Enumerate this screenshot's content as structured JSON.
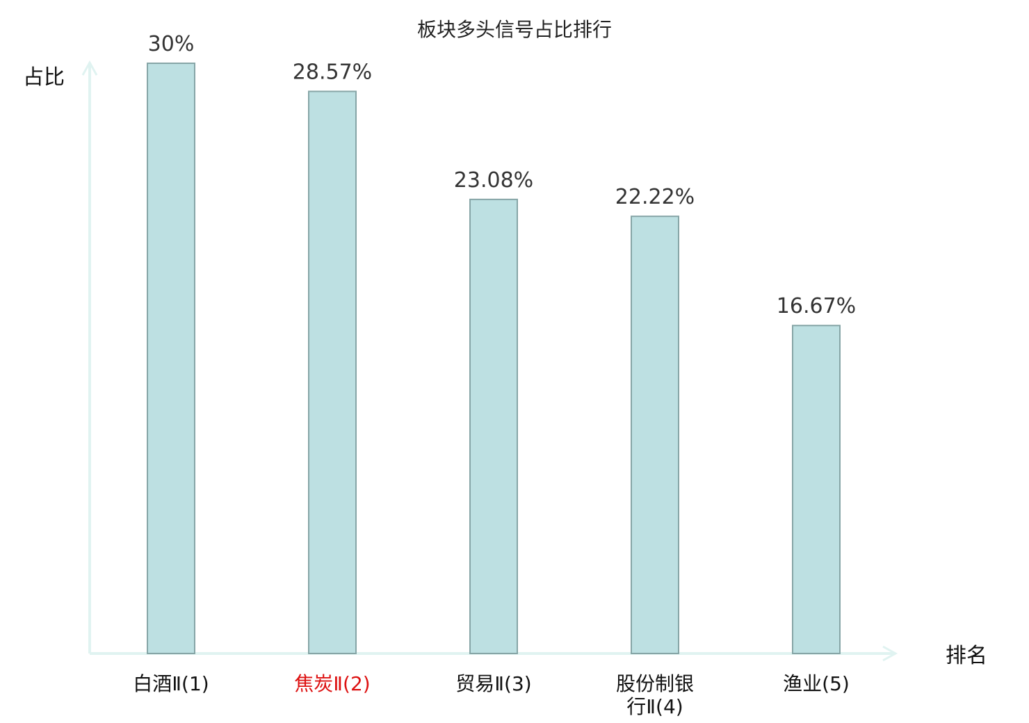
{
  "chart_data": {
    "type": "bar",
    "title": "板块多头信号占比排行",
    "xlabel": "排名",
    "ylabel": "占比",
    "categories": [
      [
        "白酒Ⅱ(1)"
      ],
      [
        "焦炭Ⅱ(2)"
      ],
      [
        "贸易Ⅱ(3)"
      ],
      [
        "股份制银",
        "行Ⅱ(4)"
      ],
      [
        "渔业(5)"
      ]
    ],
    "values": [
      30,
      28.57,
      23.08,
      22.22,
      16.67
    ],
    "value_labels": [
      "30%",
      "28.57%",
      "23.08%",
      "22.22%",
      "16.67%"
    ],
    "ylim": [
      0,
      30
    ],
    "grid": false,
    "legend": "none",
    "highlight_index": 1,
    "colors": {
      "bar_fill": "#bde0e2",
      "bar_stroke": "#86a5a6",
      "axis": "#e0f3f1",
      "highlight_text": "#dd1111",
      "normal_text": "#111111",
      "value_text": "#333333"
    }
  }
}
